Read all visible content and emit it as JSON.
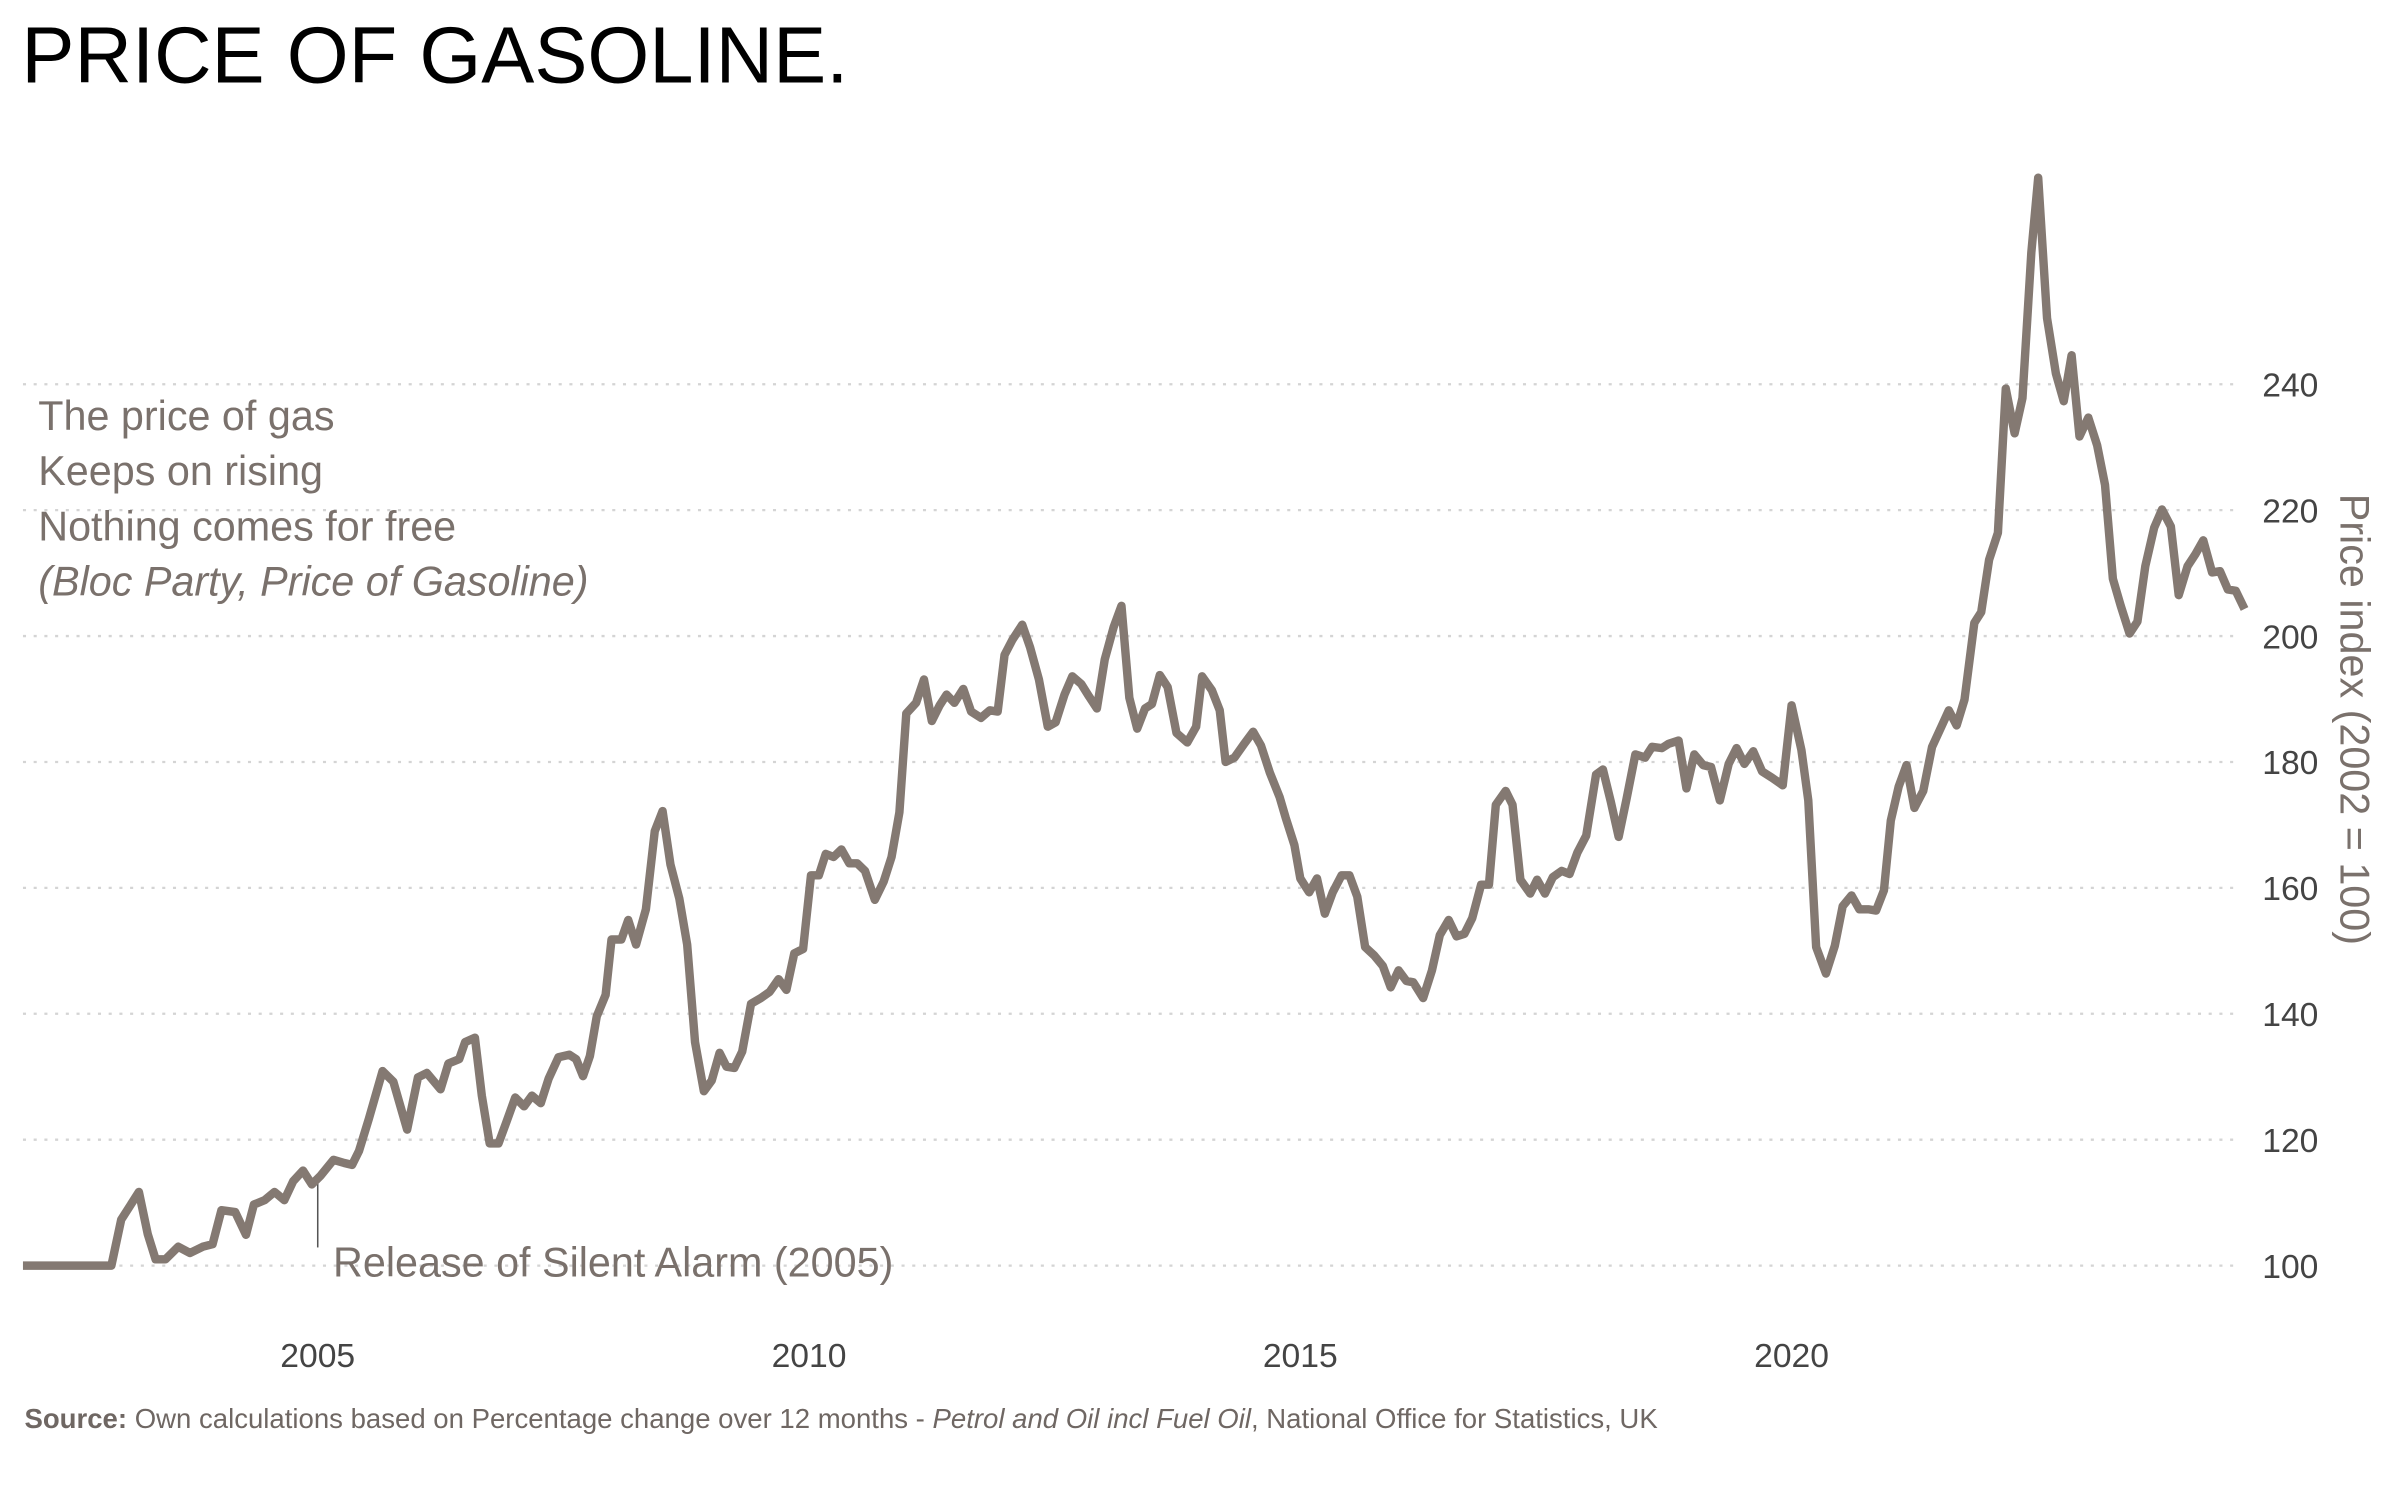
{
  "chart_data": {
    "type": "line",
    "title": "PRICE OF GASOLINE.",
    "y_label": "Price index (2002 = 100)",
    "note_lines": [
      "The price of gas",
      "Keeps on rising",
      "Nothing comes for free",
      "(Bloc Party, Price of Gasoline)"
    ],
    "annotation": {
      "text": "Release of Silent Alarm (2005)",
      "x": 2005
    },
    "source": {
      "label": "Source:",
      "text": "Own calculations based on Percentage change over 12 months -",
      "italic": "Petrol and Oil incl Fuel Oil",
      "rest": ", National Office for Statistics, UK"
    },
    "color": "#847972",
    "grid": true,
    "xlim": [
      2002,
      2024.65
    ],
    "ylim": [
      90,
      280
    ],
    "xticks": [
      2005,
      2010,
      2015,
      2020
    ],
    "yticks": [
      100,
      120,
      140,
      160,
      180,
      200,
      220,
      240
    ],
    "x": [
      2002.0,
      2002.9,
      2003.0,
      2003.18,
      2003.27,
      2003.35,
      2003.45,
      2003.58,
      2003.7,
      2003.83,
      2003.93,
      2004.02,
      2004.16,
      2004.27,
      2004.35,
      2004.46,
      2004.56,
      2004.66,
      2004.75,
      2004.85,
      2004.94,
      2005.03,
      2005.16,
      2005.27,
      2005.35,
      2005.42,
      2005.52,
      2005.66,
      2005.77,
      2005.91,
      2006.02,
      2006.11,
      2006.25,
      2006.33,
      2006.44,
      2006.5,
      2006.6,
      2006.67,
      2006.75,
      2006.84,
      2006.92,
      2007.01,
      2007.1,
      2007.18,
      2007.27,
      2007.35,
      2007.45,
      2007.56,
      2007.63,
      2007.7,
      2007.77,
      2007.84,
      2007.93,
      2007.99,
      2008.09,
      2008.16,
      2008.24,
      2008.34,
      2008.43,
      2008.51,
      2008.59,
      2008.68,
      2008.76,
      2008.84,
      2008.93,
      2009.01,
      2009.09,
      2009.16,
      2009.24,
      2009.32,
      2009.41,
      2009.51,
      2009.6,
      2009.69,
      2009.77,
      2009.85,
      2009.94,
      2010.02,
      2010.1,
      2010.17,
      2010.25,
      2010.33,
      2010.41,
      2010.49,
      2010.57,
      2010.67,
      2010.76,
      2010.84,
      2010.92,
      2010.99,
      2011.09,
      2011.17,
      2011.25,
      2011.33,
      2011.4,
      2011.48,
      2011.57,
      2011.65,
      2011.75,
      2011.84,
      2011.92,
      2011.99,
      2012.07,
      2012.17,
      2012.25,
      2012.34,
      2012.43,
      2012.51,
      2012.6,
      2012.68,
      2012.77,
      2012.85,
      2012.93,
      2013.01,
      2013.1,
      2013.18,
      2013.26,
      2013.34,
      2013.42,
      2013.49,
      2013.57,
      2013.65,
      2013.74,
      2013.85,
      2013.94,
      2014.0,
      2014.1,
      2014.18,
      2014.24,
      2014.33,
      2014.43,
      2014.52,
      2014.6,
      2014.69,
      2014.79,
      2014.85,
      2014.94,
      2015.0,
      2015.09,
      2015.17,
      2015.25,
      2015.33,
      2015.42,
      2015.5,
      2015.58,
      2015.66,
      2015.75,
      2015.84,
      2015.92,
      2016.0,
      2016.08,
      2016.15,
      2016.25,
      2016.34,
      2016.42,
      2016.51,
      2016.59,
      2016.67,
      2016.75,
      2016.84,
      2016.92,
      2016.99,
      2017.09,
      2017.16,
      2017.24,
      2017.34,
      2017.41,
      2017.49,
      2017.57,
      2017.66,
      2017.74,
      2017.82,
      2017.91,
      2018.01,
      2018.08,
      2018.16,
      2018.24,
      2018.32,
      2018.41,
      2018.51,
      2018.58,
      2018.68,
      2018.75,
      2018.85,
      2018.93,
      2019.01,
      2019.1,
      2019.18,
      2019.27,
      2019.36,
      2019.44,
      2019.52,
      2019.61,
      2019.7,
      2019.8,
      2019.91,
      2020.0,
      2020.1,
      2020.17,
      2020.25,
      2020.35,
      2020.44,
      2020.52,
      2020.61,
      2020.69,
      2020.78,
      2020.86,
      2020.94,
      2021.01,
      2021.09,
      2021.17,
      2021.25,
      2021.34,
      2021.43,
      2021.53,
      2021.6,
      2021.68,
      2021.76,
      2021.86,
      2021.93,
      2022.01,
      2022.1,
      2022.18,
      2022.27,
      2022.35,
      2022.44,
      2022.51,
      2022.6,
      2022.69,
      2022.77,
      2022.85,
      2022.93,
      2023.02,
      2023.11,
      2023.19,
      2023.27,
      2023.35,
      2023.44,
      2023.52,
      2023.6,
      2023.69,
      2023.77,
      2023.86,
      2023.94,
      2024.03,
      2024.11,
      2024.19,
      2024.28,
      2024.36,
      2024.44,
      2024.52,
      2024.61
    ],
    "values": [
      100,
      100,
      107.3,
      111.7,
      105,
      101,
      101,
      103,
      102,
      103,
      103.4,
      108.8,
      108.5,
      104.9,
      109.7,
      110.4,
      111.7,
      110.4,
      113.4,
      115.1,
      112.9,
      114.3,
      116.8,
      116.3,
      116,
      118.2,
      123.3,
      130.9,
      129.2,
      121.6,
      129.9,
      130.6,
      128,
      132.1,
      132.8,
      135.5,
      136.2,
      127,
      119.4,
      119.4,
      122.8,
      126.7,
      125.3,
      127,
      125.8,
      129.7,
      133.1,
      133.5,
      132.8,
      130.1,
      133.3,
      139.6,
      143,
      151.8,
      151.8,
      154.9,
      151,
      156.6,
      169,
      172.2,
      163.7,
      158.3,
      151,
      135.5,
      127.7,
      129.4,
      133.8,
      131.6,
      131.4,
      134,
      141.6,
      142.5,
      143.5,
      145.5,
      143.8,
      149.6,
      150.3,
      162,
      162,
      165.4,
      164.9,
      166.1,
      163.9,
      163.9,
      162.7,
      158.1,
      161,
      164.9,
      172,
      187.7,
      189.4,
      193.1,
      186.5,
      189,
      190.7,
      189.4,
      191.6,
      188,
      187,
      188.2,
      188,
      197,
      199.4,
      201.8,
      198.2,
      193.1,
      185.6,
      186.3,
      190.7,
      193.6,
      192.4,
      190.4,
      188.5,
      196.3,
      201.4,
      204.8,
      190.2,
      185.3,
      188.5,
      189.2,
      193.8,
      191.9,
      184.6,
      183.1,
      185.6,
      193.6,
      191.4,
      188.2,
      180,
      180.7,
      182.9,
      184.8,
      182.6,
      178.3,
      174.4,
      171.2,
      166.8,
      161.5,
      159.3,
      161.5,
      155.9,
      159.3,
      162,
      162,
      158.6,
      150.6,
      149.3,
      147.6,
      144.2,
      146.9,
      145.2,
      145,
      142.5,
      146.9,
      152.5,
      154.9,
      152.3,
      152.7,
      155.2,
      160.5,
      160.5,
      173.2,
      175.4,
      173.2,
      161.3,
      159.1,
      161.3,
      159.1,
      161.7,
      162.7,
      162.2,
      165.6,
      168.3,
      178,
      178.8,
      173.7,
      168.1,
      174.1,
      181.2,
      180.7,
      182.4,
      182.2,
      182.9,
      183.4,
      175.8,
      181.2,
      179.5,
      179.2,
      173.9,
      179.7,
      182.2,
      179.7,
      181.7,
      178.5,
      177.5,
      176.3,
      189,
      181.9,
      173.9,
      150.6,
      146.4,
      150.8,
      157.1,
      158.8,
      156.6,
      156.6,
      156.4,
      159.6,
      170.7,
      176.1,
      179.5,
      172.7,
      175.4,
      182.4,
      185.8,
      188.2,
      185.8,
      189.9,
      202.1,
      203.8,
      212.1,
      216.4,
      239.3,
      232.2,
      237.8,
      260.9,
      272.8,
      250.5,
      241.7,
      237.3,
      244.6,
      231.7,
      234.7,
      230.3,
      224,
      209.1,
      204.8,
      200.4,
      202.3,
      211.1,
      217.2,
      220.1,
      217.4,
      206.5,
      211.1,
      213,
      215.2,
      210.1,
      210.3,
      207.4,
      207.2,
      204.3
    ]
  }
}
